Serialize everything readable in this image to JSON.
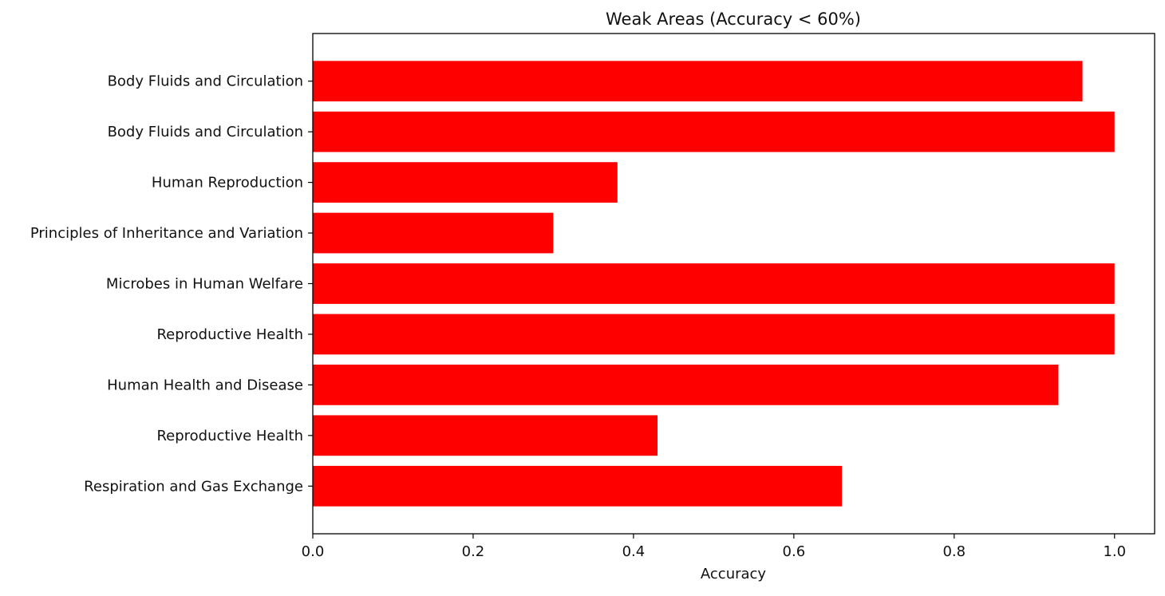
{
  "chart_data": {
    "type": "bar",
    "orientation": "horizontal",
    "title": "Weak Areas (Accuracy < 60%)",
    "xlabel": "Accuracy",
    "ylabel": "",
    "xlim": [
      0,
      1.05
    ],
    "x_ticks": [
      0.0,
      0.2,
      0.4,
      0.6,
      0.8,
      1.0
    ],
    "x_tick_labels": [
      "0.0",
      "0.2",
      "0.4",
      "0.6",
      "0.8",
      "1.0"
    ],
    "categories": [
      "Body Fluids and Circulation",
      "Body Fluids and Circulation ",
      "Human Reproduction",
      "Principles of Inheritance and Variation ",
      "Microbes in Human Welfare",
      "Reproductive Health ",
      "Human Health and Disease ",
      "Reproductive Health",
      "Respiration and Gas Exchange"
    ],
    "values": [
      0.96,
      1.0,
      0.38,
      0.3,
      1.0,
      1.0,
      0.93,
      0.43,
      0.66
    ],
    "bar_color": "#ff0000",
    "grid": false,
    "legend": "none"
  }
}
